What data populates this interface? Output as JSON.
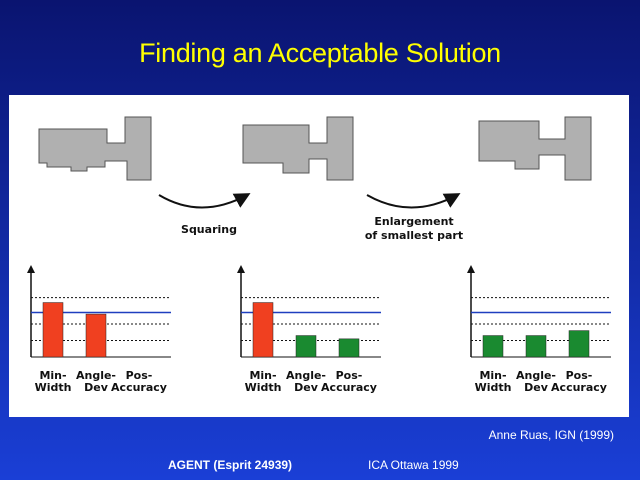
{
  "title": "Finding an Acceptable Solution",
  "steps": {
    "squaring": "Squaring",
    "enlargement_line1": "Enlargement",
    "enlargement_line2": "of smallest part"
  },
  "criteria": [
    {
      "line1": "Min-",
      "line2": "Width"
    },
    {
      "line1": "Angle-",
      "line2": "Dev"
    },
    {
      "line1": "Pos-",
      "line2": "Accuracy"
    }
  ],
  "colors": {
    "bad": "#f04020",
    "good": "#1a8a30",
    "threshold": "#1f3fbf"
  },
  "charts": [
    {
      "bars": [
        {
          "value": 3.3,
          "status": "bad"
        },
        {
          "value": 2.6,
          "status": "bad"
        },
        {
          "value": 0,
          "status": "none"
        }
      ]
    },
    {
      "bars": [
        {
          "value": 3.3,
          "status": "bad"
        },
        {
          "value": 1.3,
          "status": "good"
        },
        {
          "value": 1.1,
          "status": "good"
        }
      ]
    },
    {
      "bars": [
        {
          "value": 1.3,
          "status": "good"
        },
        {
          "value": 1.3,
          "status": "good"
        },
        {
          "value": 1.6,
          "status": "good"
        }
      ]
    }
  ],
  "credit": "Anne Ruas, IGN (1999)",
  "footer": {
    "left": "AGENT (Esprit 24939)",
    "right": "ICA Ottawa 1999"
  }
}
